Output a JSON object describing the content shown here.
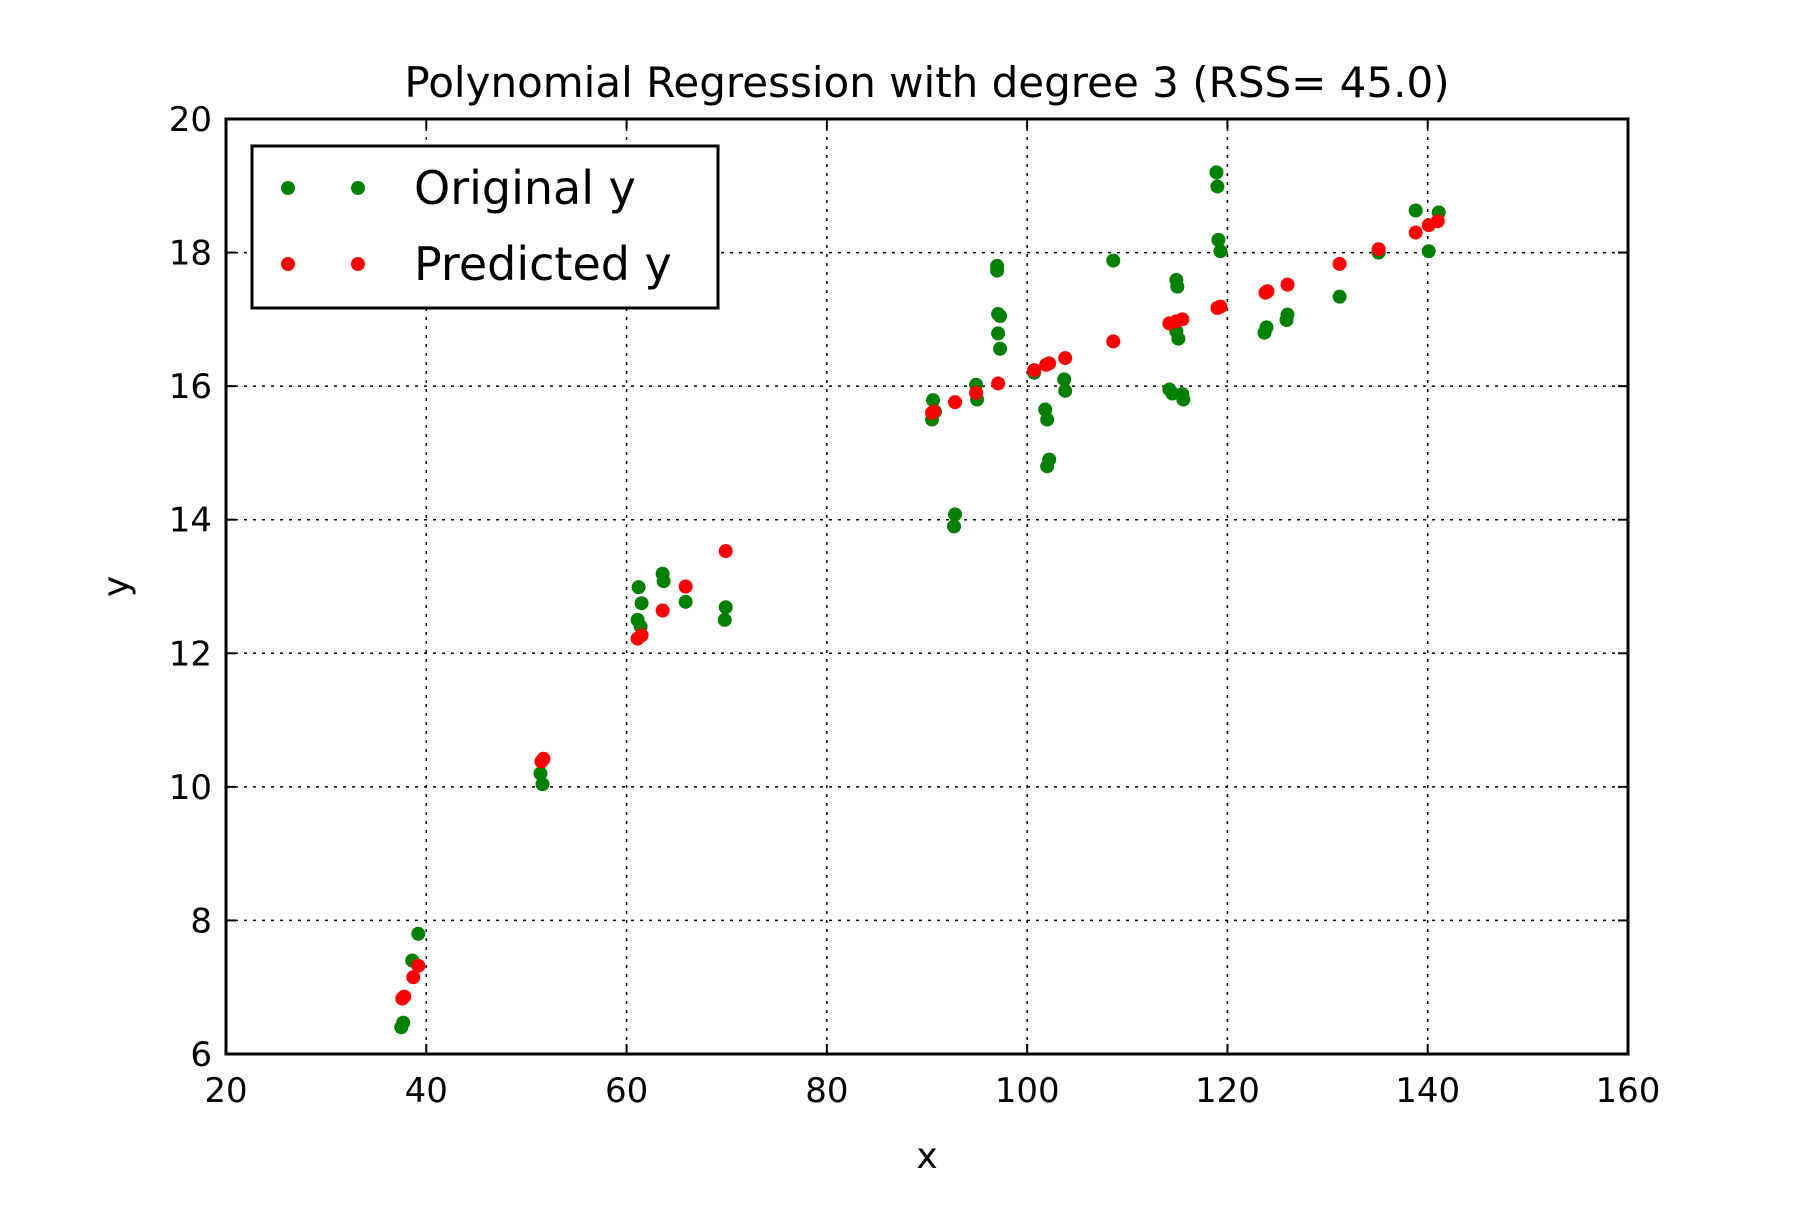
{
  "chart_data": {
    "type": "scatter",
    "title": "Polynomial Regression with degree 3 (RSS= 45.0)",
    "xlabel": "x",
    "ylabel": "y",
    "xlim": [
      20,
      160
    ],
    "ylim": [
      6,
      20
    ],
    "xticks": [
      20,
      40,
      60,
      80,
      100,
      120,
      140,
      160
    ],
    "yticks": [
      6,
      8,
      10,
      12,
      14,
      16,
      18,
      20
    ],
    "grid": true,
    "legend_position": "top-left",
    "series": [
      {
        "name": "Original y",
        "color": "#008000",
        "points": [
          [
            37.5,
            6.4
          ],
          [
            37.7,
            6.47
          ],
          [
            38.6,
            7.4
          ],
          [
            39.2,
            7.8
          ],
          [
            51.4,
            10.2
          ],
          [
            51.6,
            10.04
          ],
          [
            61.1,
            12.5
          ],
          [
            61.2,
            12.99
          ],
          [
            61.5,
            12.75
          ],
          [
            61.4,
            12.4
          ],
          [
            63.6,
            13.19
          ],
          [
            63.7,
            13.08
          ],
          [
            65.9,
            12.77
          ],
          [
            69.9,
            12.69
          ],
          [
            69.8,
            12.5
          ],
          [
            90.5,
            15.5
          ],
          [
            90.6,
            15.79
          ],
          [
            90.8,
            15.62
          ],
          [
            92.8,
            14.08
          ],
          [
            92.7,
            13.9
          ],
          [
            94.9,
            16.02
          ],
          [
            95.0,
            15.8
          ],
          [
            97.0,
            17.8
          ],
          [
            97.0,
            17.73
          ],
          [
            97.1,
            17.08
          ],
          [
            97.3,
            17.05
          ],
          [
            97.1,
            16.79
          ],
          [
            97.3,
            16.56
          ],
          [
            100.7,
            16.2
          ],
          [
            101.8,
            15.65
          ],
          [
            102.0,
            15.5
          ],
          [
            102.2,
            14.9
          ],
          [
            102.0,
            14.8
          ],
          [
            103.7,
            16.1
          ],
          [
            103.8,
            15.93
          ],
          [
            108.6,
            17.88
          ],
          [
            114.9,
            17.59
          ],
          [
            115.0,
            17.49
          ],
          [
            114.9,
            16.82
          ],
          [
            115.1,
            16.71
          ],
          [
            114.2,
            15.95
          ],
          [
            114.5,
            15.89
          ],
          [
            115.5,
            15.88
          ],
          [
            115.6,
            15.8
          ],
          [
            118.9,
            19.2
          ],
          [
            119.0,
            18.99
          ],
          [
            119.1,
            18.19
          ],
          [
            119.3,
            18.02
          ],
          [
            123.7,
            16.8
          ],
          [
            123.9,
            16.88
          ],
          [
            125.9,
            16.99
          ],
          [
            126.0,
            17.07
          ],
          [
            131.2,
            17.34
          ],
          [
            135.1,
            18.0
          ],
          [
            138.8,
            18.63
          ],
          [
            140.1,
            18.02
          ],
          [
            141.1,
            18.6
          ]
        ]
      },
      {
        "name": "Predicted y",
        "color": "#ff0000",
        "points": [
          [
            37.6,
            6.83
          ],
          [
            37.8,
            6.86
          ],
          [
            38.7,
            7.15
          ],
          [
            39.2,
            7.32
          ],
          [
            51.5,
            10.38
          ],
          [
            51.7,
            10.42
          ],
          [
            61.1,
            12.22
          ],
          [
            61.5,
            12.27
          ],
          [
            63.6,
            12.64
          ],
          [
            65.9,
            13.0
          ],
          [
            69.9,
            13.53
          ],
          [
            90.5,
            15.6
          ],
          [
            90.7,
            15.62
          ],
          [
            92.8,
            15.76
          ],
          [
            94.9,
            15.9
          ],
          [
            97.1,
            16.04
          ],
          [
            100.7,
            16.24
          ],
          [
            101.9,
            16.32
          ],
          [
            102.2,
            16.34
          ],
          [
            103.8,
            16.42
          ],
          [
            108.6,
            16.67
          ],
          [
            114.2,
            16.94
          ],
          [
            114.9,
            16.97
          ],
          [
            115.5,
            17.0
          ],
          [
            119.0,
            17.17
          ],
          [
            119.3,
            17.19
          ],
          [
            123.8,
            17.4
          ],
          [
            124.0,
            17.42
          ],
          [
            126.0,
            17.52
          ],
          [
            131.2,
            17.83
          ],
          [
            135.1,
            18.05
          ],
          [
            138.8,
            18.3
          ],
          [
            140.1,
            18.41
          ],
          [
            141.0,
            18.47
          ]
        ]
      }
    ]
  }
}
